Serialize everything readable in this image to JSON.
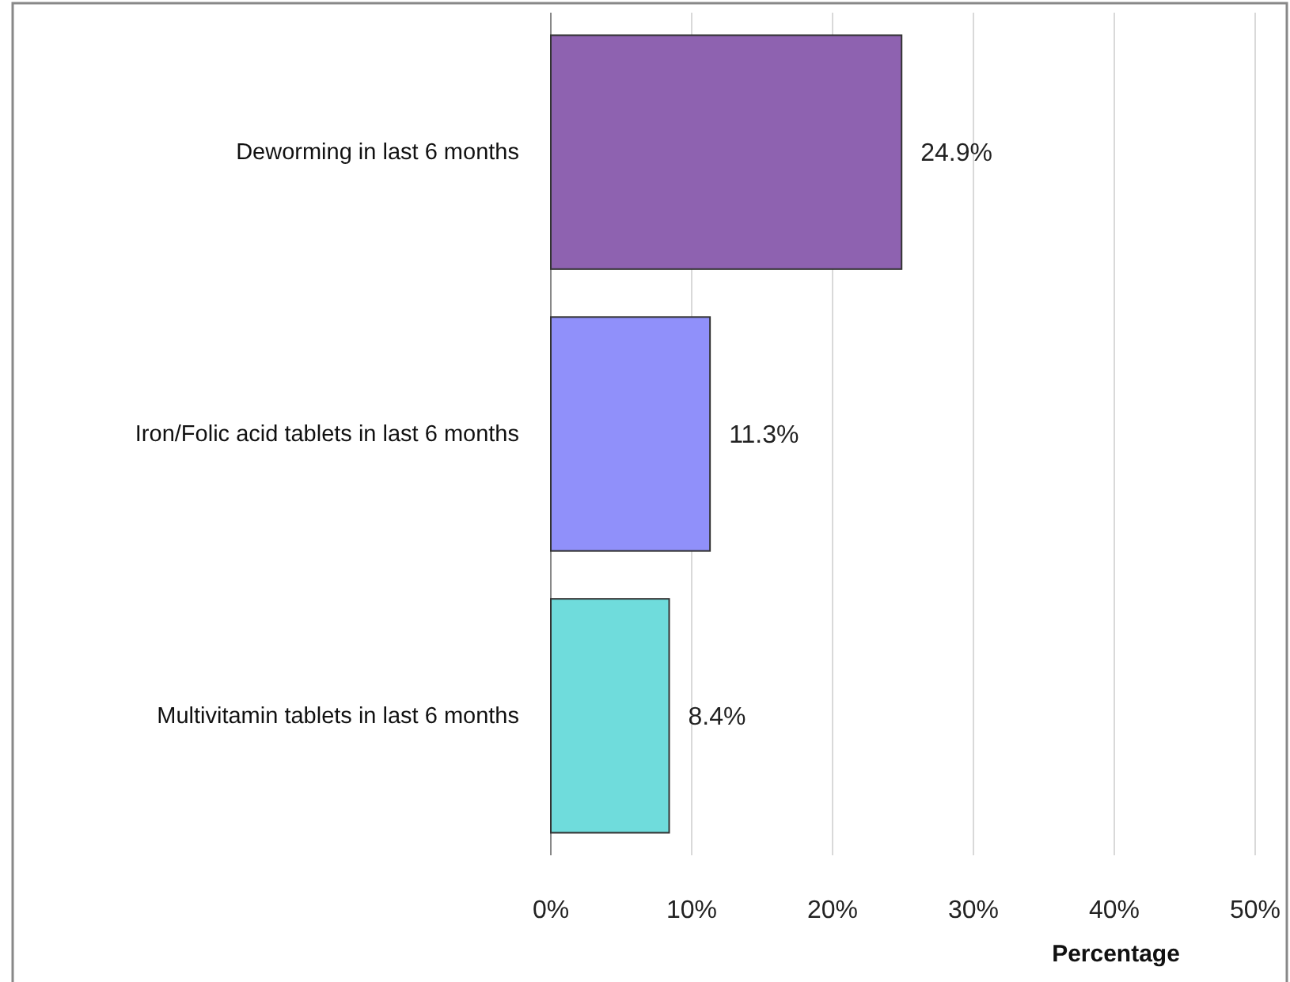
{
  "chart_data": {
    "type": "bar",
    "orientation": "horizontal",
    "xlabel": "Percentage",
    "categories": [
      "Deworming in last 6 months",
      "Iron/Folic acid tablets in last 6 months",
      "Multivitamin tablets in last 6 months"
    ],
    "values": [
      24.9,
      11.3,
      8.4
    ],
    "colors": [
      "#8e62b0",
      "#9090fa",
      "#6fdcdc"
    ],
    "value_labels": [
      "24.9%",
      "11.3%",
      "8.4%"
    ],
    "xlim": [
      0,
      50
    ],
    "xticks": [
      {
        "value": 0,
        "label": "0%"
      },
      {
        "value": 10,
        "label": "10%"
      },
      {
        "value": 20,
        "label": "20%"
      },
      {
        "value": 30,
        "label": "30%"
      },
      {
        "value": 40,
        "label": "40%"
      },
      {
        "value": 50,
        "label": "50%"
      }
    ],
    "grid": "x"
  }
}
